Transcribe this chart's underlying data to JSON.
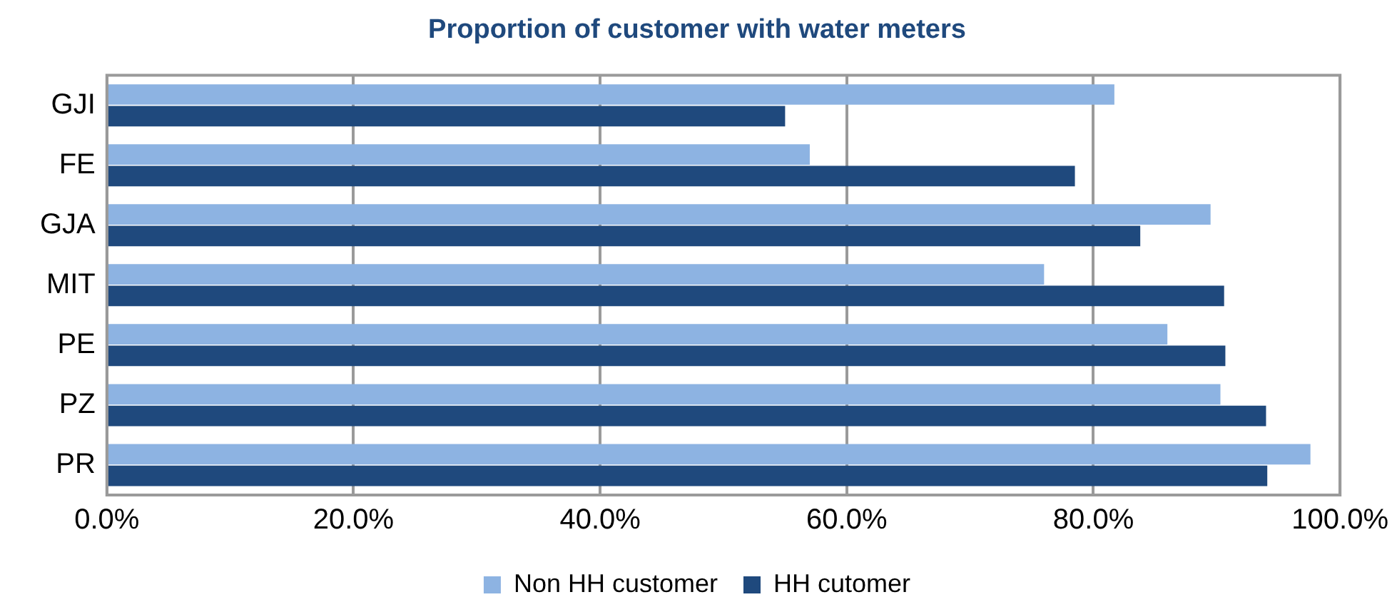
{
  "chart_data": {
    "type": "bar",
    "orientation": "horizontal",
    "title": "Proportion of customer with water meters",
    "categories": [
      "GJI",
      "FE",
      "GJA",
      "MIT",
      "PE",
      "PZ",
      "PR"
    ],
    "series": [
      {
        "name": "Non HH customer",
        "color": "#8db3e2",
        "values": [
          81.7,
          57.0,
          89.5,
          76.0,
          86.0,
          90.3,
          97.6
        ]
      },
      {
        "name": "HH cutomer",
        "color": "#1f497d",
        "values": [
          55.0,
          78.5,
          83.8,
          90.6,
          90.7,
          94.0,
          94.1
        ]
      }
    ],
    "xlim": [
      0,
      100
    ],
    "xticks": [
      {
        "value": 0,
        "label": "0.0%"
      },
      {
        "value": 20,
        "label": "20.0%"
      },
      {
        "value": 40,
        "label": "40.0%"
      },
      {
        "value": 60,
        "label": "60.0%"
      },
      {
        "value": 80,
        "label": "80.0%"
      },
      {
        "value": 100,
        "label": "100.0%"
      }
    ],
    "grid": "x",
    "legend": "bottom"
  }
}
